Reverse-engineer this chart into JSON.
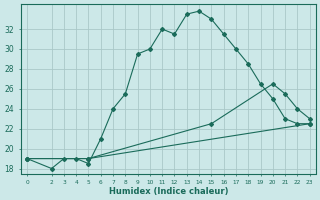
{
  "xlabel": "Humidex (Indice chaleur)",
  "bg_color": "#cce8e8",
  "grid_color": "#aac8c8",
  "line_color": "#1a6b5a",
  "xlim": [
    -0.5,
    23.5
  ],
  "ylim": [
    17.5,
    34.5
  ],
  "yticks": [
    18,
    20,
    22,
    24,
    26,
    28,
    30,
    32
  ],
  "xticks": [
    0,
    2,
    3,
    4,
    5,
    6,
    7,
    8,
    9,
    10,
    11,
    12,
    13,
    14,
    15,
    16,
    17,
    18,
    19,
    20,
    21,
    22,
    23
  ],
  "line1_x": [
    0,
    2,
    3,
    4,
    5,
    6,
    7,
    8,
    9,
    10,
    11,
    12,
    13,
    14,
    15,
    16,
    17,
    18,
    19,
    20,
    21,
    22,
    23
  ],
  "line1_y": [
    19.0,
    18.0,
    19.0,
    19.0,
    18.5,
    21.0,
    24.0,
    25.5,
    29.5,
    30.0,
    32.0,
    31.5,
    33.5,
    33.8,
    33.0,
    31.5,
    30.0,
    28.5,
    26.5,
    25.0,
    23.0,
    22.5,
    22.5
  ],
  "line2_x": [
    0,
    5,
    15,
    20,
    21,
    22,
    23
  ],
  "line2_y": [
    19.0,
    19.0,
    22.5,
    26.5,
    25.5,
    24.0,
    23.0
  ],
  "line3_x": [
    0,
    5,
    23
  ],
  "line3_y": [
    19.0,
    19.0,
    22.5
  ]
}
